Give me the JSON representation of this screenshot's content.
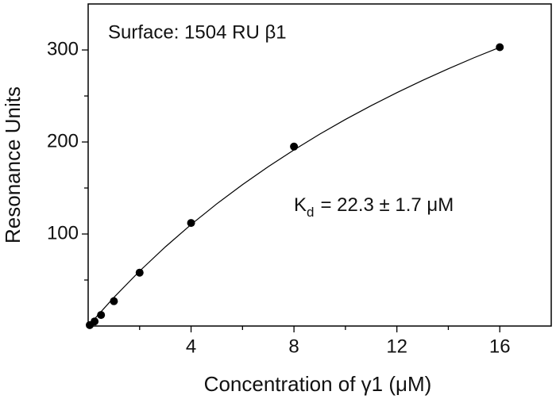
{
  "chart_data": {
    "type": "scatter",
    "xlabel": "Concentration of γ1 (μM)",
    "ylabel": "Resonance Units",
    "annotation": "Surface: 1504 RU β1",
    "kd_label": {
      "main": "K",
      "sub": "d",
      "rest": "= 22.3 ± 1.7 μM"
    },
    "x": [
      0.0625,
      0.25,
      0.5,
      1,
      2,
      4,
      8,
      16
    ],
    "values": [
      1,
      5,
      12,
      27,
      58,
      112,
      195,
      303
    ],
    "color": "#000000",
    "fit": {
      "x": [
        0,
        1,
        2,
        3,
        4,
        5,
        6,
        7,
        8,
        9,
        10,
        11,
        12,
        13,
        14,
        15,
        16
      ],
      "values": [
        0,
        31.1,
        59.7,
        86.0,
        110.3,
        132.8,
        153.7,
        173.2,
        191.4,
        208.5,
        224.5,
        239.5,
        253.6,
        267.0,
        279.6,
        291.6,
        302.9
      ]
    },
    "xlim": [
      0,
      18
    ],
    "xticks": [
      4,
      8,
      12,
      16
    ],
    "xminor_ticks": [
      2,
      6,
      10,
      14
    ],
    "ylim": [
      0,
      350
    ],
    "yticks": [
      100,
      200,
      300
    ],
    "yminor_ticks": [
      50,
      150,
      250
    ],
    "grid": false
  }
}
